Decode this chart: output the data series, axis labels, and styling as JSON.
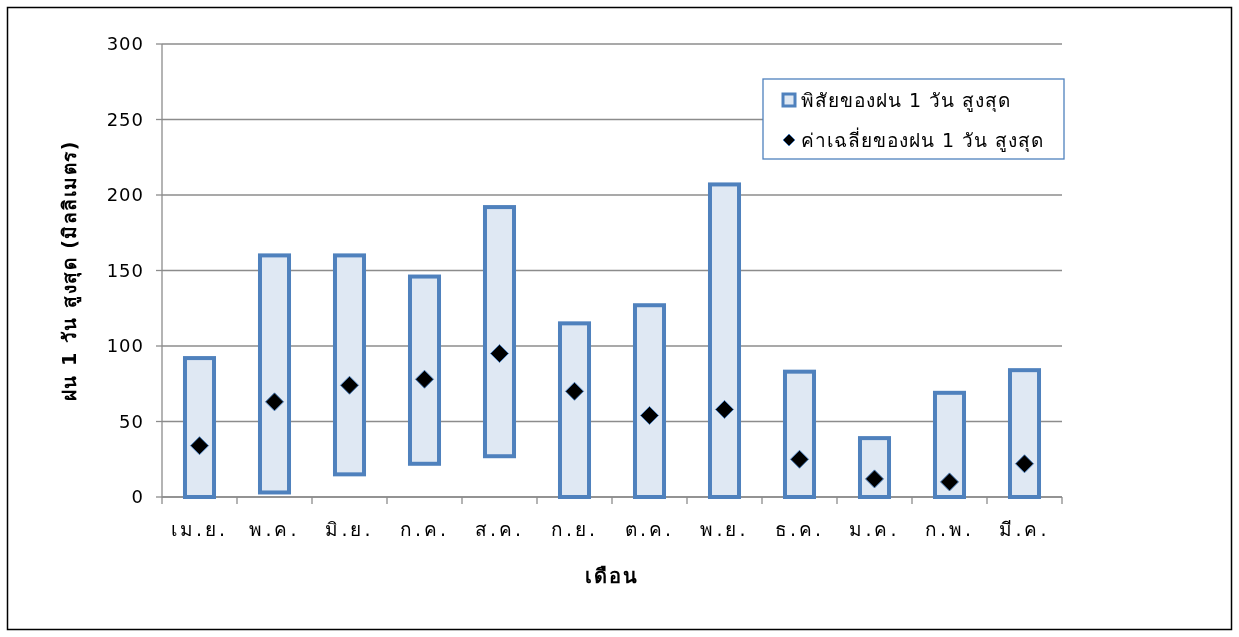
{
  "chart_data": {
    "type": "bar",
    "xlabel": "เดือน",
    "ylabel": "ฝน 1 วัน สูงสุด (มิลลิเมตร)",
    "categories": [
      "เม.ย.",
      "พ.ค.",
      "มิ.ย.",
      "ก.ค.",
      "ส.ค.",
      "ก.ย.",
      "ต.ค.",
      "พ.ย.",
      "ธ.ค.",
      "ม.ค.",
      "ก.พ.",
      "มี.ค."
    ],
    "ylim": [
      0,
      300
    ],
    "yticks": [
      0,
      50,
      100,
      150,
      200,
      250,
      300
    ],
    "grid": "y",
    "legend": "top right",
    "series": [
      {
        "name": "พิสัยของฝน 1 วัน สูงสุด",
        "color": "#4f81bd",
        "base": [
          0,
          3,
          15,
          22,
          27,
          0,
          0,
          0,
          0,
          0,
          0,
          0
        ],
        "values": [
          92,
          157,
          145,
          124,
          165,
          115,
          127,
          207,
          83,
          39,
          69,
          84
        ]
      },
      {
        "name": "ค่าเฉลี่ยของฝน 1 วัน สูงสุด",
        "type": "scatter",
        "color": "#000000",
        "marker": "diamond",
        "values": [
          34,
          63,
          74,
          78,
          95,
          70,
          54,
          58,
          25,
          12,
          10,
          22
        ]
      }
    ]
  }
}
